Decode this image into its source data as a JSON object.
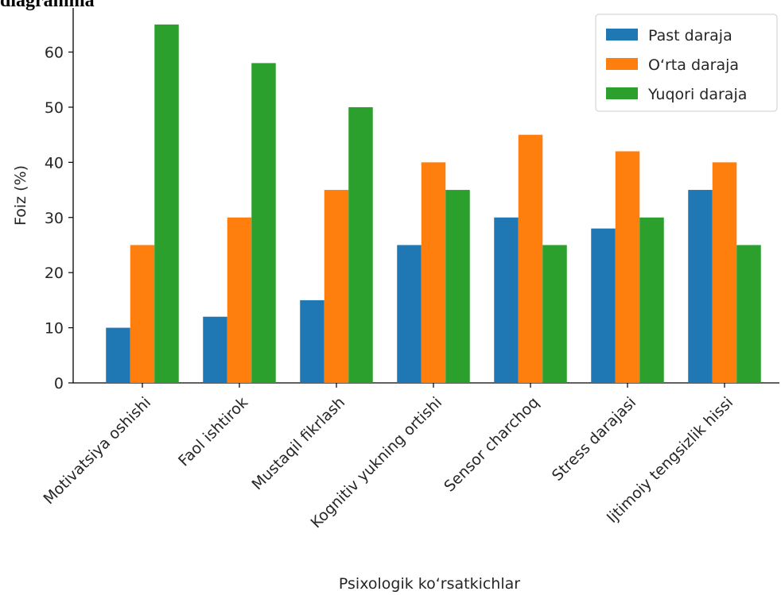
{
  "header": {
    "text": "diagramma"
  },
  "chart_data": {
    "type": "bar",
    "categories": [
      "Motivatsiya oshishi",
      "Faol ishtirok",
      "Mustaqil fikrlash",
      "Kognitiv yukning ortishi",
      "Sensor charchoq",
      "Stress darajasi",
      "Ijtimoiy tengsizlik hissi"
    ],
    "series": [
      {
        "name": "Past daraja",
        "color": "#1f77b4",
        "values": [
          10,
          12,
          15,
          25,
          30,
          28,
          35
        ]
      },
      {
        "name": "O‘rta daraja",
        "color": "#ff7f0e",
        "values": [
          25,
          30,
          35,
          40,
          45,
          42,
          40
        ]
      },
      {
        "name": "Yuqori daraja",
        "color": "#2ca02c",
        "values": [
          65,
          58,
          50,
          35,
          25,
          30,
          25
        ]
      }
    ],
    "xlabel": "Psixologik ko‘rsatkichlar",
    "ylabel": "Foiz (%)",
    "ylim": [
      0,
      68
    ],
    "yticks": [
      0,
      10,
      20,
      30,
      40,
      50,
      60
    ],
    "legend": "top-right",
    "grid": false
  }
}
